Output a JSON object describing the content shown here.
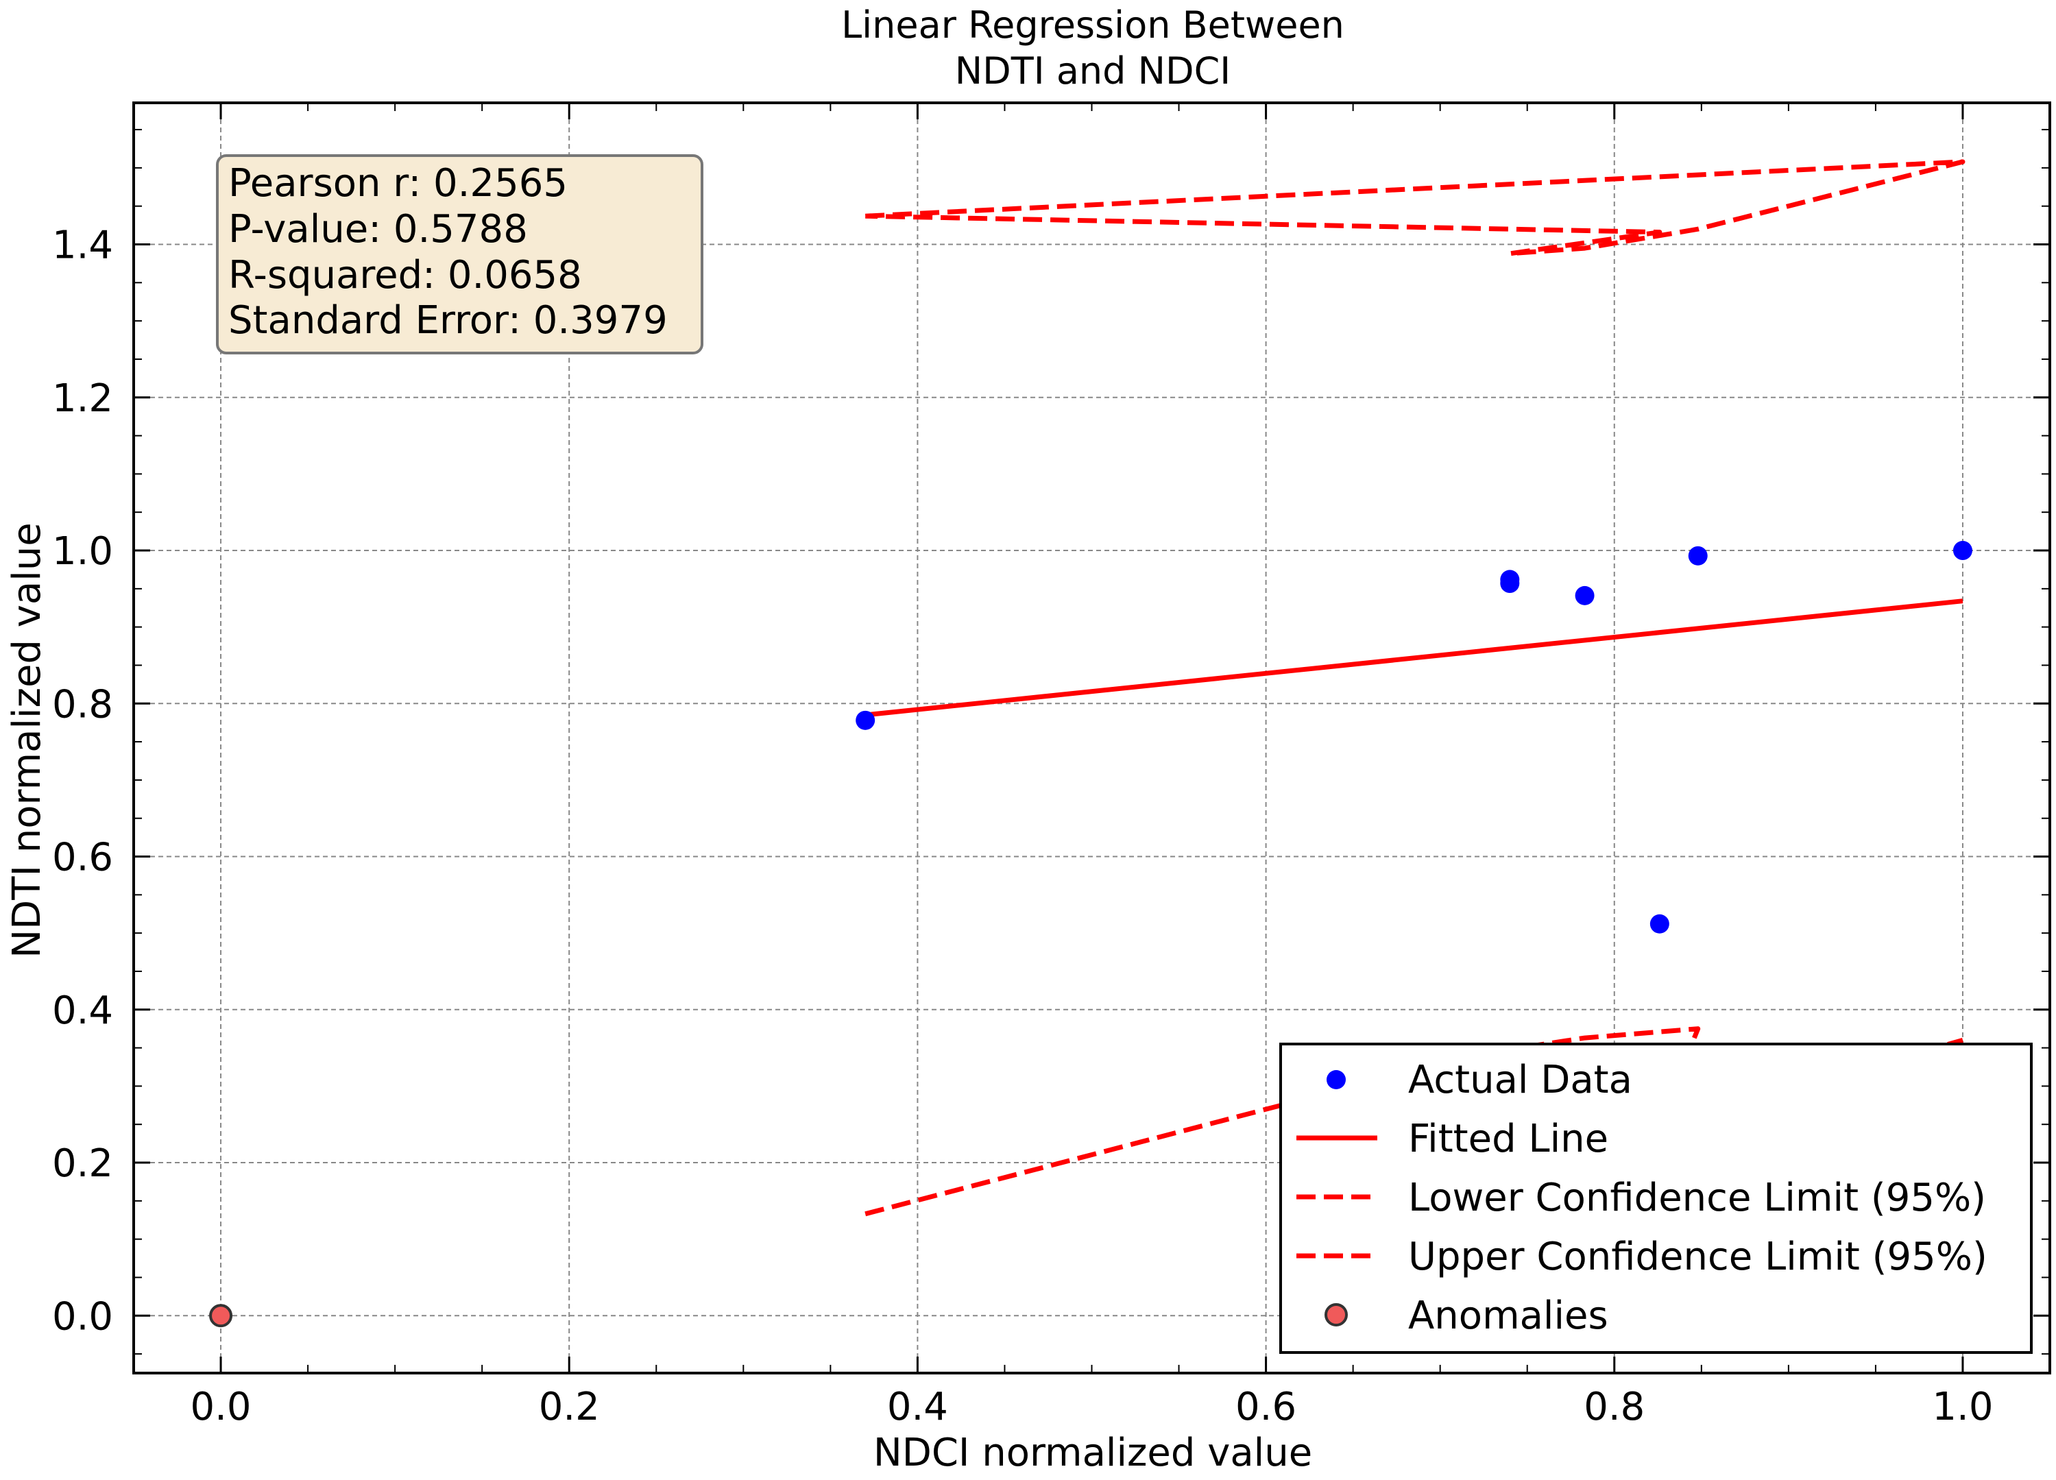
{
  "chart_data": {
    "type": "scatter",
    "title_lines": [
      "Linear Regression Between",
      "NDTI and NDCI"
    ],
    "xlabel": "NDCI normalized value",
    "ylabel": "NDTI normalized value",
    "xlim": [
      -0.05,
      1.05
    ],
    "ylim": [
      -0.075,
      1.585
    ],
    "x_ticks": [
      0.0,
      0.2,
      0.4,
      0.6,
      0.8,
      1.0
    ],
    "x_tick_labels": [
      "0.0",
      "0.2",
      "0.4",
      "0.6",
      "0.8",
      "1.0"
    ],
    "y_ticks": [
      0.0,
      0.2,
      0.4,
      0.6,
      0.8,
      1.0,
      1.2,
      1.4
    ],
    "y_tick_labels": [
      "0.0",
      "0.2",
      "0.4",
      "0.6",
      "0.8",
      "1.0",
      "1.2",
      "1.4"
    ],
    "grid": true,
    "legend_position": "lower-right",
    "stats_box": [
      "Pearson r: 0.2565",
      "P-value: 0.5788",
      "R-squared: 0.0658",
      "Standard Error: 0.3979"
    ],
    "series": [
      {
        "name": "Actual Data",
        "kind": "scatter",
        "color": "#0000ff",
        "points": [
          [
            0.37,
            0.778
          ],
          [
            0.74,
            0.962
          ],
          [
            0.74,
            0.957
          ],
          [
            0.783,
            0.941
          ],
          [
            0.848,
            0.993
          ],
          [
            0.826,
            0.512
          ],
          [
            1.0,
            1.0
          ]
        ]
      },
      {
        "name": "Fitted Line",
        "kind": "line",
        "color": "#ff0000",
        "points": [
          [
            0.37,
            0.785
          ],
          [
            1.0,
            0.934
          ]
        ]
      },
      {
        "name": "Lower Confidence Limit (95%)",
        "kind": "dashed-line",
        "color": "#ff0000",
        "points": [
          [
            0.37,
            0.133
          ],
          [
            0.74,
            0.353
          ],
          [
            0.74,
            0.348
          ],
          [
            0.783,
            0.363
          ],
          [
            0.848,
            0.375
          ],
          [
            0.826,
            0.25
          ],
          [
            1.0,
            0.36
          ]
        ]
      },
      {
        "name": "Upper Confidence Limit (95%)",
        "kind": "dashed-line",
        "color": "#ff0000",
        "points": [
          [
            0.37,
            1.437
          ],
          [
            1.0,
            1.508
          ],
          [
            0.848,
            1.42
          ],
          [
            0.783,
            1.395
          ],
          [
            0.74,
            1.388
          ],
          [
            0.826,
            1.416
          ],
          [
            0.37,
            1.437
          ]
        ]
      },
      {
        "name": "Anomalies",
        "kind": "scatter",
        "color": "#f05a5a",
        "points": [
          [
            0.0,
            0.0
          ]
        ]
      }
    ]
  }
}
